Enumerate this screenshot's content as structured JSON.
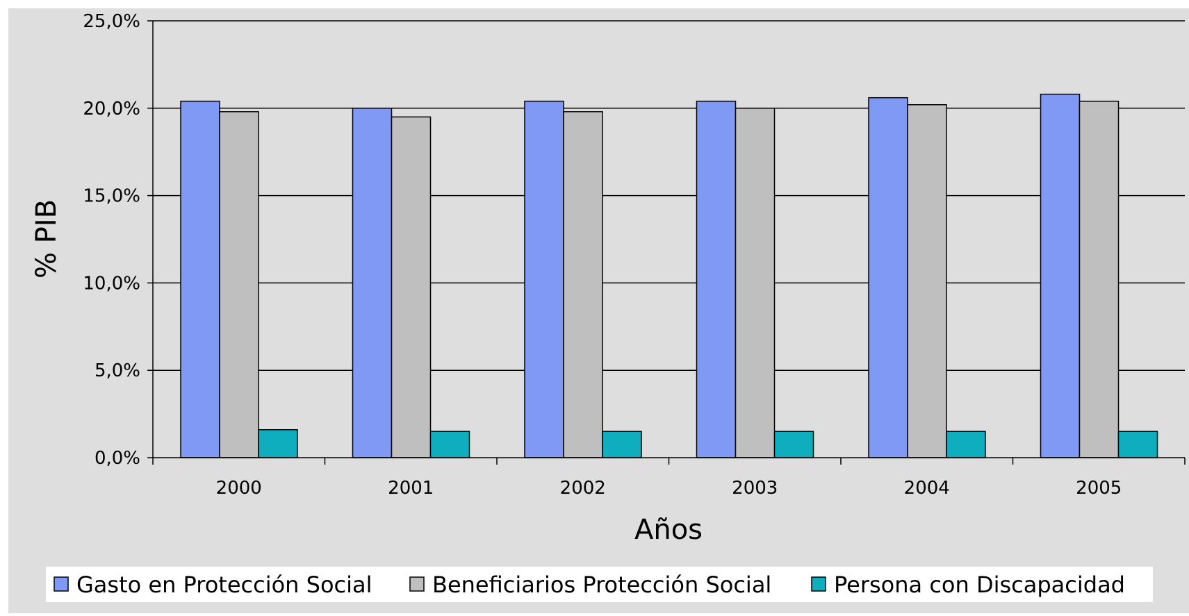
{
  "chart_data": {
    "type": "bar",
    "title": "",
    "xlabel": "Años",
    "ylabel": "% PIB",
    "categories": [
      "2000",
      "2001",
      "2002",
      "2003",
      "2004",
      "2005"
    ],
    "series": [
      {
        "name": "Gasto en Protección Social",
        "color": "#7f99f5",
        "values": [
          20.4,
          20.0,
          20.4,
          20.4,
          20.6,
          20.8
        ]
      },
      {
        "name": "Beneficiarios Protección Social",
        "color": "#bfbfbf",
        "values": [
          19.8,
          19.5,
          19.8,
          20.0,
          20.2,
          20.4
        ]
      },
      {
        "name": "Persona con Discapacidad",
        "color": "#0eaebf",
        "values": [
          1.6,
          1.5,
          1.5,
          1.5,
          1.5,
          1.5
        ]
      }
    ],
    "ylim": [
      0,
      25
    ],
    "yticks": [
      0,
      5,
      10,
      15,
      20,
      25
    ],
    "ytick_labels": [
      "0,0%",
      "5,0%",
      "10,0%",
      "15,0%",
      "20,0%",
      "25,0%"
    ],
    "grid": true,
    "legend_position": "bottom",
    "colors": {
      "background": "#dedede",
      "plot_background": "#dedede",
      "legend_background": "#ffffff",
      "grid": "#000000"
    }
  }
}
